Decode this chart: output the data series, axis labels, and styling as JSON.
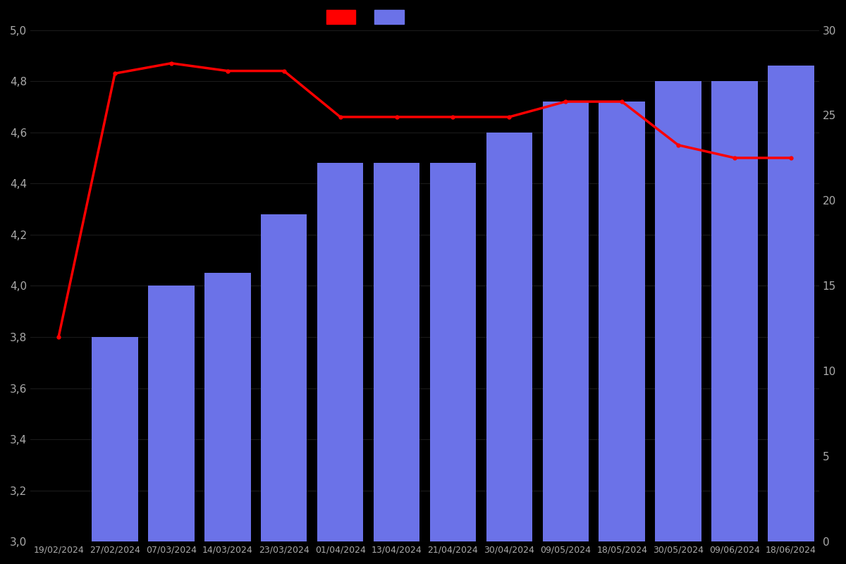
{
  "dates": [
    "19/02/2024",
    "27/02/2024",
    "07/03/2024",
    "14/03/2024",
    "23/03/2024",
    "01/04/2024",
    "13/04/2024",
    "21/04/2024",
    "30/04/2024",
    "09/05/2024",
    "18/05/2024",
    "30/05/2024",
    "09/06/2024",
    "18/06/2024"
  ],
  "bar_dates_indices": [
    1,
    2,
    3,
    4,
    5,
    6,
    7,
    8,
    9,
    10,
    11,
    12,
    13
  ],
  "bar_values": [
    3.8,
    4.0,
    4.05,
    4.28,
    4.48,
    4.48,
    4.48,
    4.6,
    4.72,
    4.72,
    4.8,
    4.8,
    4.86
  ],
  "line_values": [
    3.8,
    4.83,
    4.87,
    4.84,
    4.84,
    4.66,
    4.66,
    4.66,
    4.66,
    4.72,
    4.72,
    4.55,
    4.5,
    4.5
  ],
  "bar_color": "#6b72e8",
  "line_color": "#ff0000",
  "background_color": "#000000",
  "text_color": "#aaaaaa",
  "ylim_left": [
    3.0,
    5.0
  ],
  "ylim_right": [
    0,
    30
  ],
  "yticks_left": [
    3.0,
    3.2,
    3.4,
    3.6,
    3.8,
    4.0,
    4.2,
    4.4,
    4.6,
    4.8,
    5.0
  ],
  "yticks_right": [
    0,
    5,
    10,
    15,
    20,
    25,
    30
  ],
  "figsize": [
    12,
    8
  ],
  "dpi": 100
}
